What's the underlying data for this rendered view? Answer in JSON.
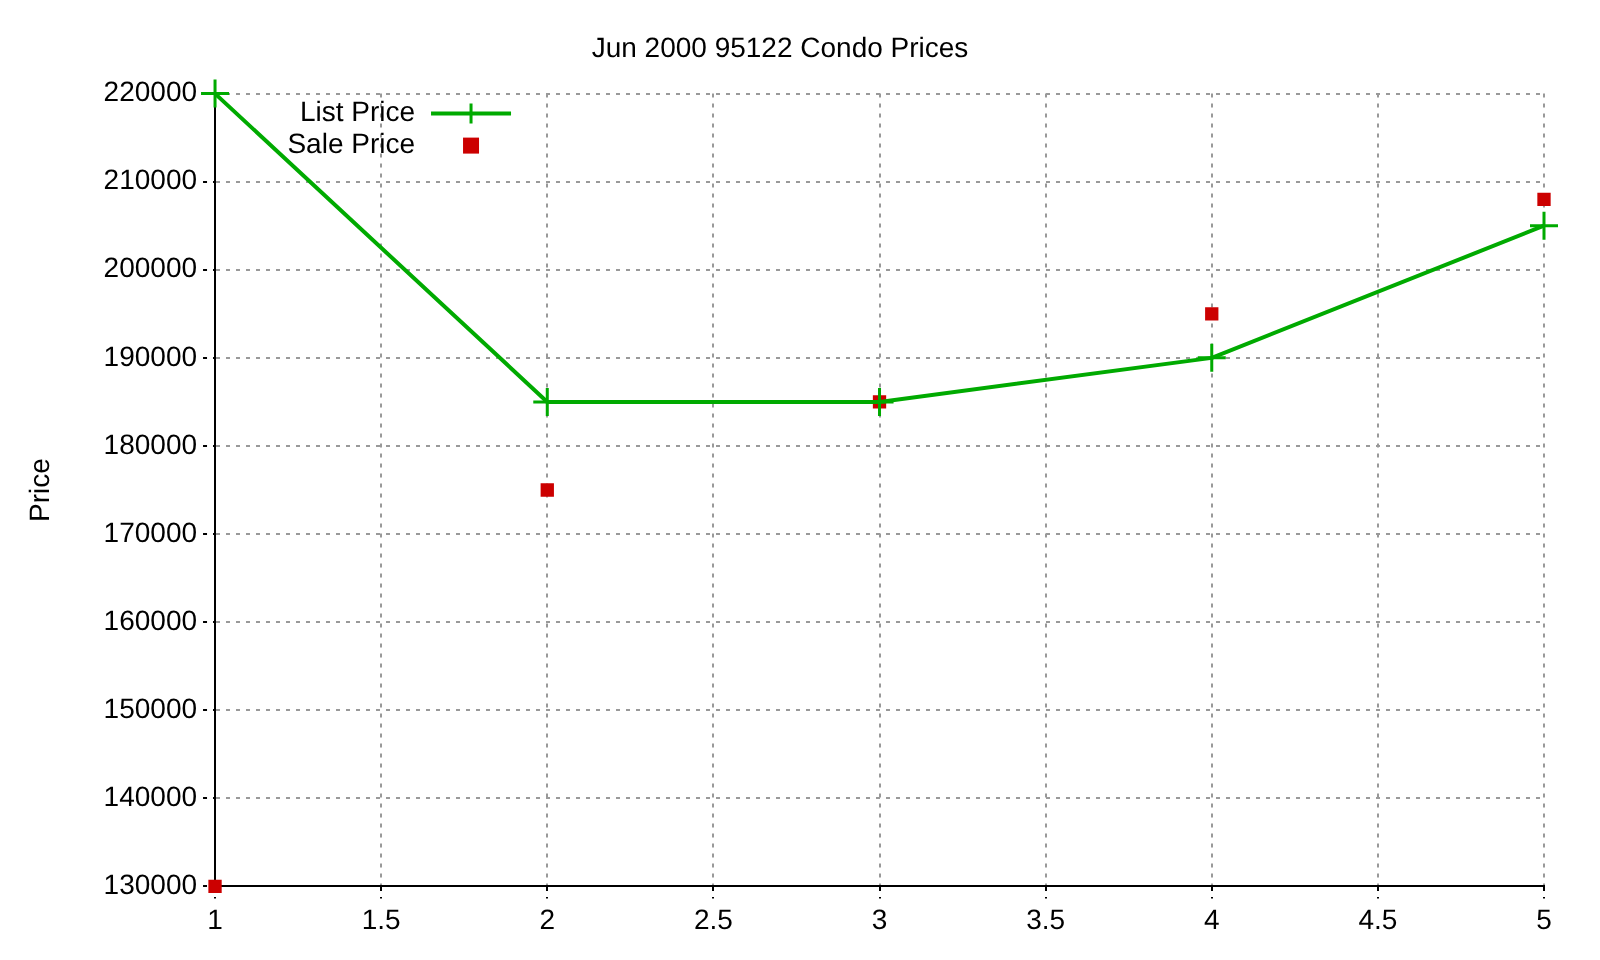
{
  "chart_data": {
    "type": "line",
    "title": "Jun 2000 95122 Condo Prices",
    "ylabel": "Price",
    "series": [
      {
        "name": "List Price",
        "color": "#00aa00",
        "marker": "cross",
        "line_style": "solid",
        "x": [
          1,
          2,
          3,
          4,
          5
        ],
        "values": [
          220000,
          185000,
          185000,
          190000,
          205000
        ]
      },
      {
        "name": "Sale Price",
        "type": "scatter",
        "color": "#cc0000",
        "marker": "square",
        "x": [
          1,
          2,
          3,
          4,
          5
        ],
        "values": [
          130000,
          175000,
          185000,
          195000,
          208000
        ]
      }
    ],
    "xlim": [
      1,
      5
    ],
    "xticks": [
      1,
      1.5,
      2,
      2.5,
      3,
      3.5,
      4,
      4.5,
      5
    ],
    "ylim": [
      130000,
      220000
    ],
    "yticks": [
      130000,
      140000,
      150000,
      160000,
      170000,
      180000,
      190000,
      200000,
      210000,
      220000
    ],
    "grid": true,
    "legend": "top left"
  }
}
